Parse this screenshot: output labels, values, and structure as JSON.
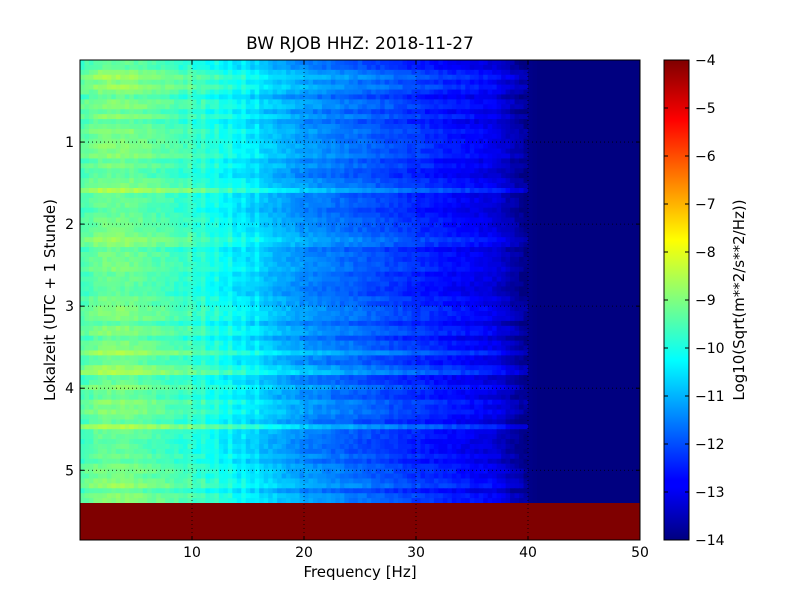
{
  "chart_data": {
    "type": "heatmap",
    "title": "BW RJOB HHZ: 2018-11-27",
    "xlabel": "Frequency [Hz]",
    "ylabel": "Lokalzeit (UTC + 1 Stunde)",
    "x_range": [
      0,
      50
    ],
    "x_ticks": [
      10,
      20,
      30,
      40,
      50
    ],
    "y_range": [
      0,
      5.85
    ],
    "y_inverted": true,
    "y_ticks": [
      1,
      2,
      3,
      4,
      5
    ],
    "grid": true,
    "data_end_hour": 5.4,
    "colorbar": {
      "label": "Log10(Sqrt(m**2/s**2/Hz))",
      "range": [
        -14,
        -4
      ],
      "ticks": [
        -4,
        -5,
        -6,
        -7,
        -8,
        -9,
        -10,
        -11,
        -12,
        -13,
        -14
      ],
      "colormap": "jet"
    },
    "spectrum_profile": {
      "frequency_hz": [
        0,
        2,
        4,
        6,
        8,
        10,
        12,
        14,
        16,
        18,
        20,
        22,
        24,
        26,
        28,
        30,
        32,
        34,
        36,
        37,
        38,
        39,
        40,
        41,
        42,
        50
      ],
      "log_amplitude": [
        -9.5,
        -9.1,
        -9.1,
        -9.3,
        -9.5,
        -9.8,
        -10.1,
        -10.4,
        -10.7,
        -11.0,
        -11.3,
        -11.5,
        -11.7,
        -11.9,
        -12.1,
        -12.3,
        -12.5,
        -12.7,
        -12.9,
        -13.0,
        -13.3,
        -13.6,
        -13.9,
        -14.0,
        -14.0,
        -14.0
      ]
    },
    "no_data_value": -4,
    "colors": {
      "jet_dark_blue": "#00007f",
      "jet_dark_red": "#7f0000"
    }
  }
}
